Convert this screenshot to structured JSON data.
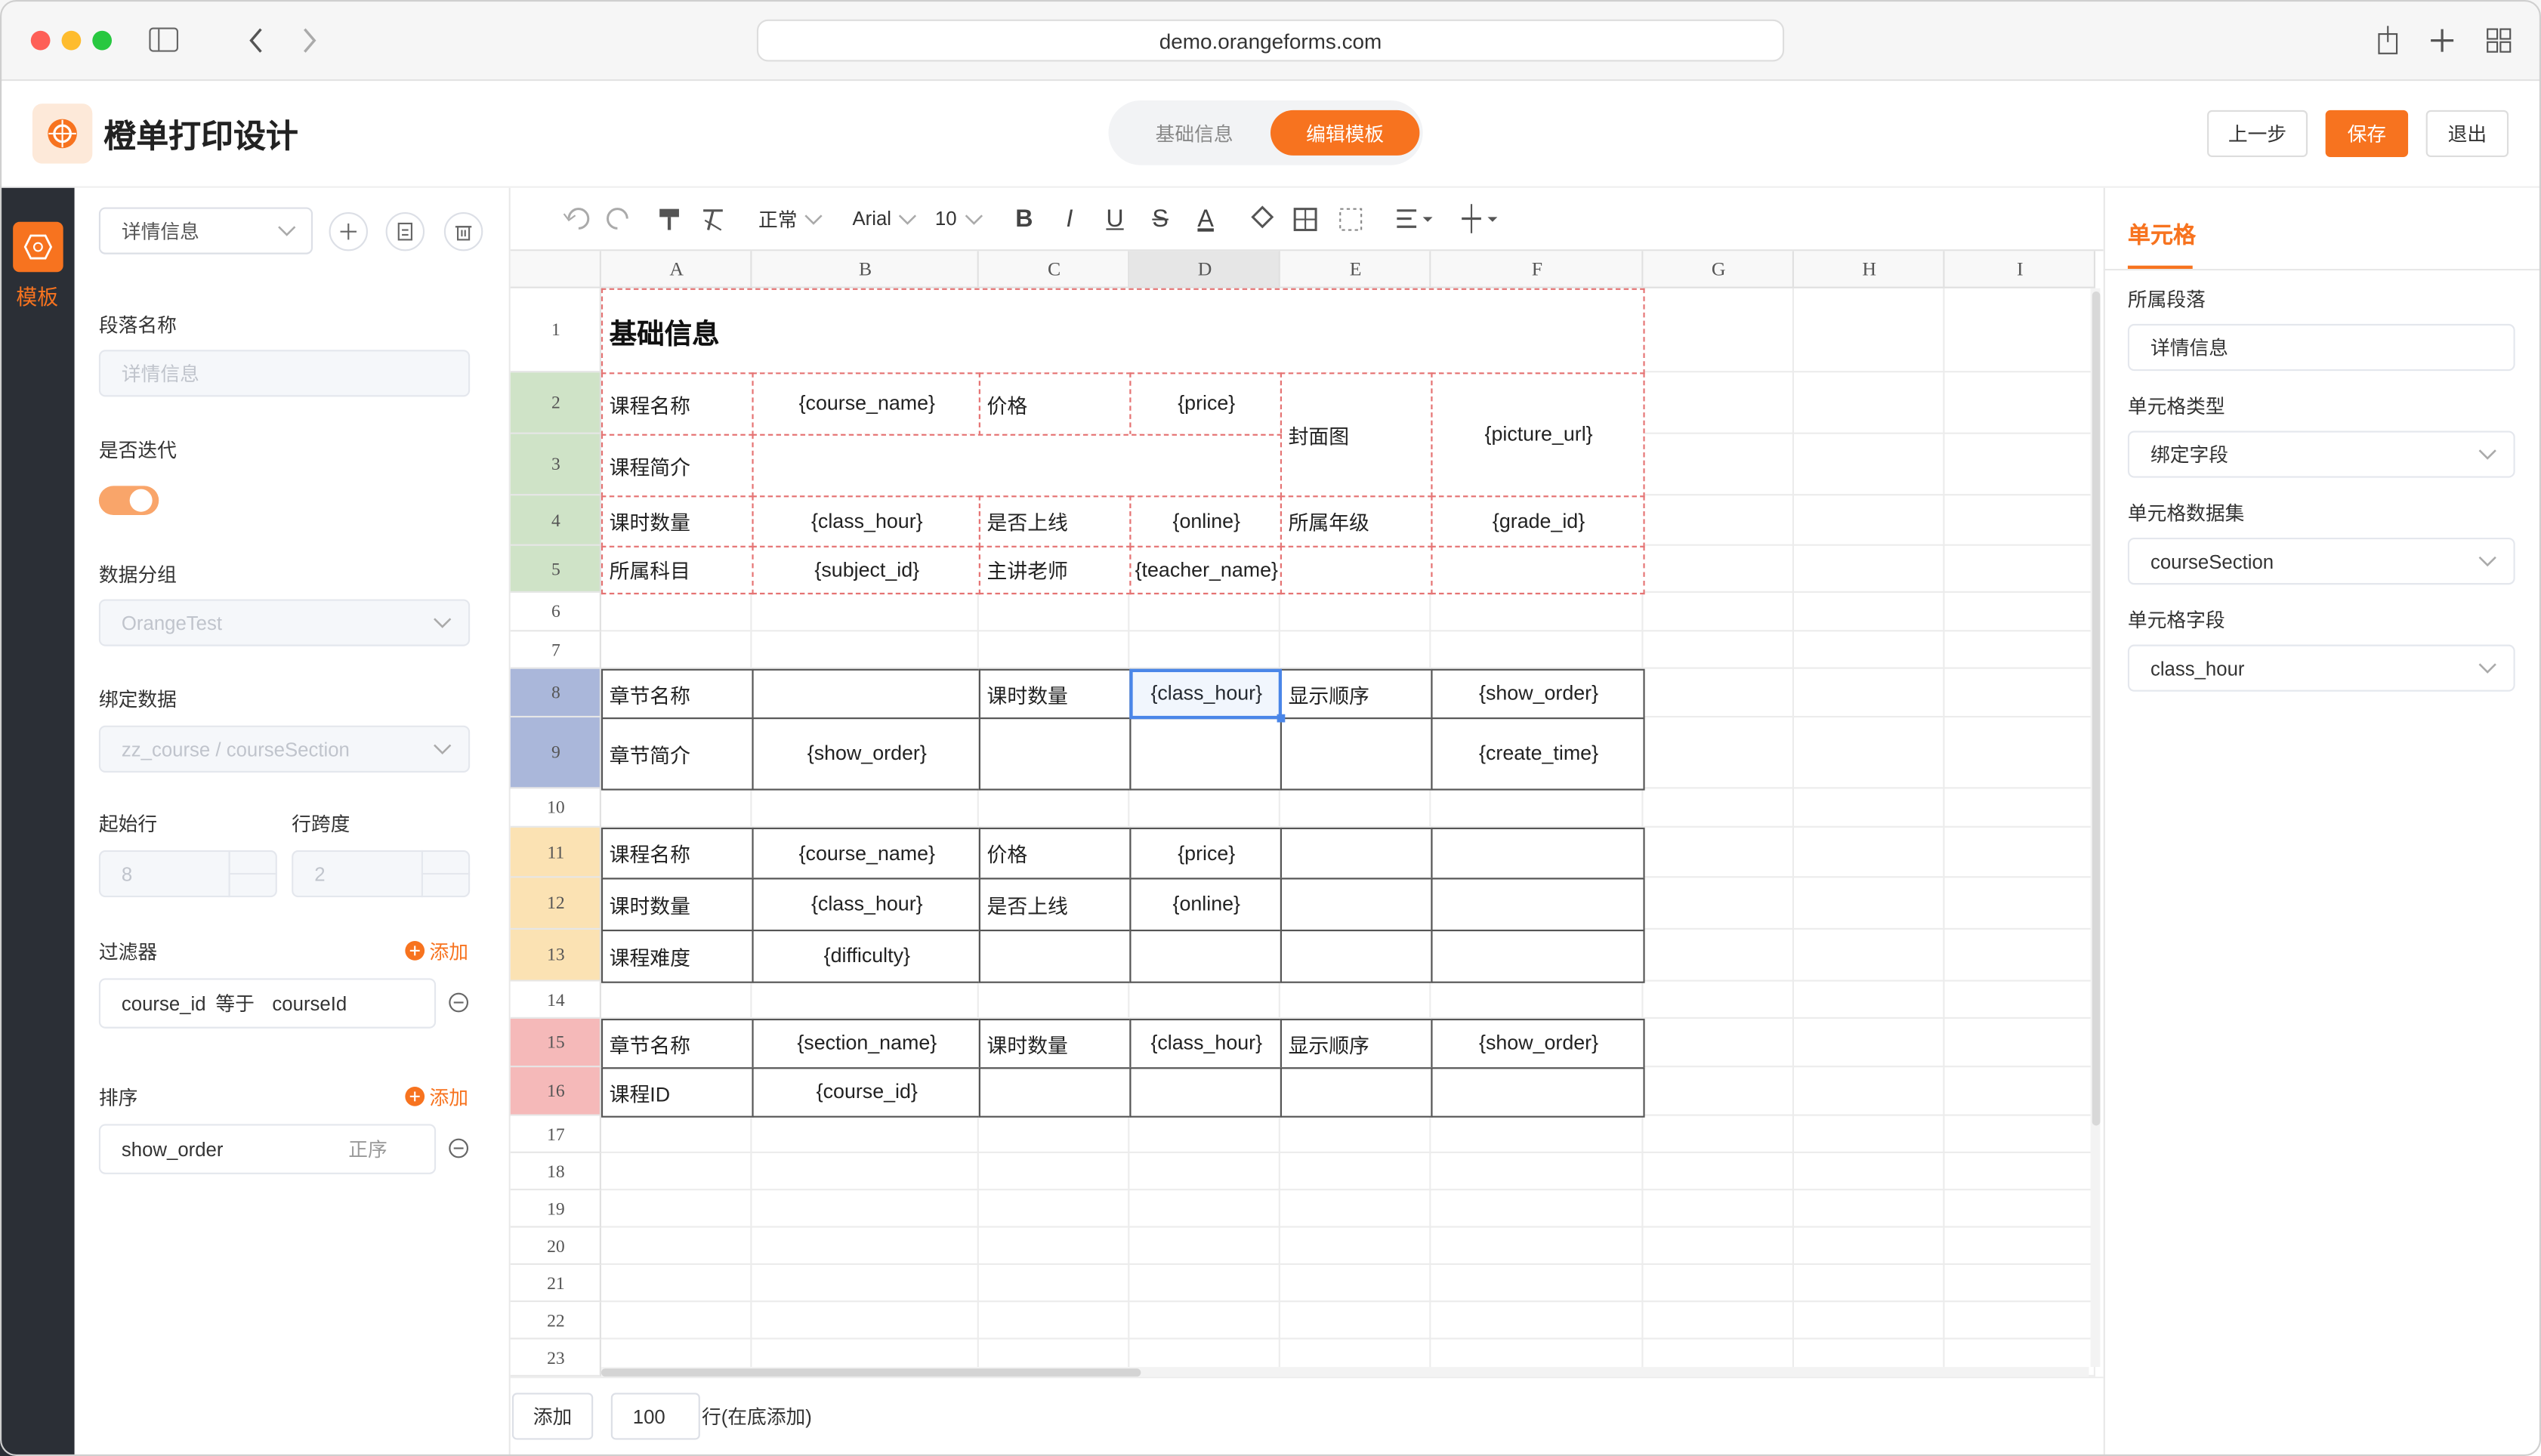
{
  "browser": {
    "url": "demo.orangeforms.com"
  },
  "header": {
    "title": "橙单打印设计",
    "tabs": [
      "基础信息",
      "编辑模板"
    ],
    "buttons": [
      "上一步",
      "保存",
      "退出"
    ]
  },
  "sidebar": {
    "items": [
      "模板"
    ]
  },
  "left_panel": {
    "segment": "详情信息",
    "segment_name": {
      "label": "段落名称",
      "placeholder": "详情信息"
    },
    "iterate": {
      "label": "是否迭代"
    },
    "data_group": {
      "label": "数据分组",
      "value": "OrangeTest"
    },
    "bind_data": {
      "label": "绑定数据",
      "value": "zz_course / courseSection"
    },
    "start_row": {
      "label": "起始行",
      "value": "8"
    },
    "row_span": {
      "label": "行跨度",
      "value": "2"
    },
    "filter": {
      "label": "过滤器",
      "add": "添加",
      "items": [
        [
          "course_id",
          "等于",
          "courseId"
        ]
      ]
    },
    "sort": {
      "label": "排序",
      "add": "添加",
      "items": [
        [
          "show_order",
          "正序"
        ]
      ]
    }
  },
  "toolbar": {
    "style": "正常",
    "font": "Arial",
    "size": "10",
    "format": [
      "B",
      "I",
      "U",
      "S",
      "A"
    ]
  },
  "sheet": {
    "columns": [
      "A",
      "B",
      "C",
      "D",
      "E",
      "F",
      "G",
      "H",
      "I"
    ],
    "rows": [
      {
        "label": "1",
        "cells": [
          "基础信息",
          null,
          null,
          null,
          null,
          null
        ]
      },
      {
        "label": "2",
        "cells": [
          "课程名称",
          "{course_name}",
          "价格",
          "{price}",
          "封面图",
          "{picture_url}"
        ]
      },
      {
        "label": "3",
        "cells": [
          "课程简介",
          null,
          null,
          null,
          null,
          null
        ]
      },
      {
        "label": "4",
        "cells": [
          "课时数量",
          "{class_hour}",
          "是否上线",
          "{online}",
          "所属年级",
          "{grade_id}"
        ]
      },
      {
        "label": "5",
        "cells": [
          "所属科目",
          "{subject_id}",
          "主讲老师",
          "{teacher_name}",
          null,
          null
        ]
      },
      {
        "label": "6"
      },
      {
        "label": "7"
      },
      {
        "label": "8",
        "cells": [
          "章节名称",
          null,
          "课时数量",
          "{class_hour}",
          "显示顺序",
          "{show_order}"
        ]
      },
      {
        "label": "9",
        "cells": [
          "章节简介",
          "{show_order}",
          null,
          null,
          null,
          "{create_time}"
        ]
      },
      {
        "label": "10"
      },
      {
        "label": "11",
        "cells": [
          "课程名称",
          "{course_name}",
          "价格",
          "{price}",
          null,
          null
        ]
      },
      {
        "label": "12",
        "cells": [
          "课时数量",
          "{class_hour}",
          "是否上线",
          "{online}",
          null,
          null
        ]
      },
      {
        "label": "13",
        "cells": [
          "课程难度",
          "{difficulty}",
          null,
          null,
          null,
          null
        ]
      },
      {
        "label": "14"
      },
      {
        "label": "15",
        "cells": [
          "章节名称",
          "{section_name}",
          "课时数量",
          "{class_hour}",
          "显示顺序",
          "{show_order}"
        ]
      },
      {
        "label": "16",
        "cells": [
          "课程ID",
          "{course_id}",
          null,
          null,
          null,
          null
        ]
      },
      {
        "label": "17"
      },
      {
        "label": "18"
      },
      {
        "label": "19"
      },
      {
        "label": "20"
      },
      {
        "label": "21"
      },
      {
        "label": "22"
      },
      {
        "label": "23"
      }
    ]
  },
  "right_panel": {
    "title": "单元格",
    "fields": [
      {
        "label": "所属段落",
        "value": "详情信息"
      },
      {
        "label": "单元格类型",
        "value": "绑定字段"
      },
      {
        "label": "单元格数据集",
        "value": "courseSection"
      },
      {
        "label": "单元格字段",
        "value": "class_hour"
      }
    ]
  },
  "footer": {
    "button": "添加",
    "count": "100",
    "suffix": "行(在底添加)"
  }
}
